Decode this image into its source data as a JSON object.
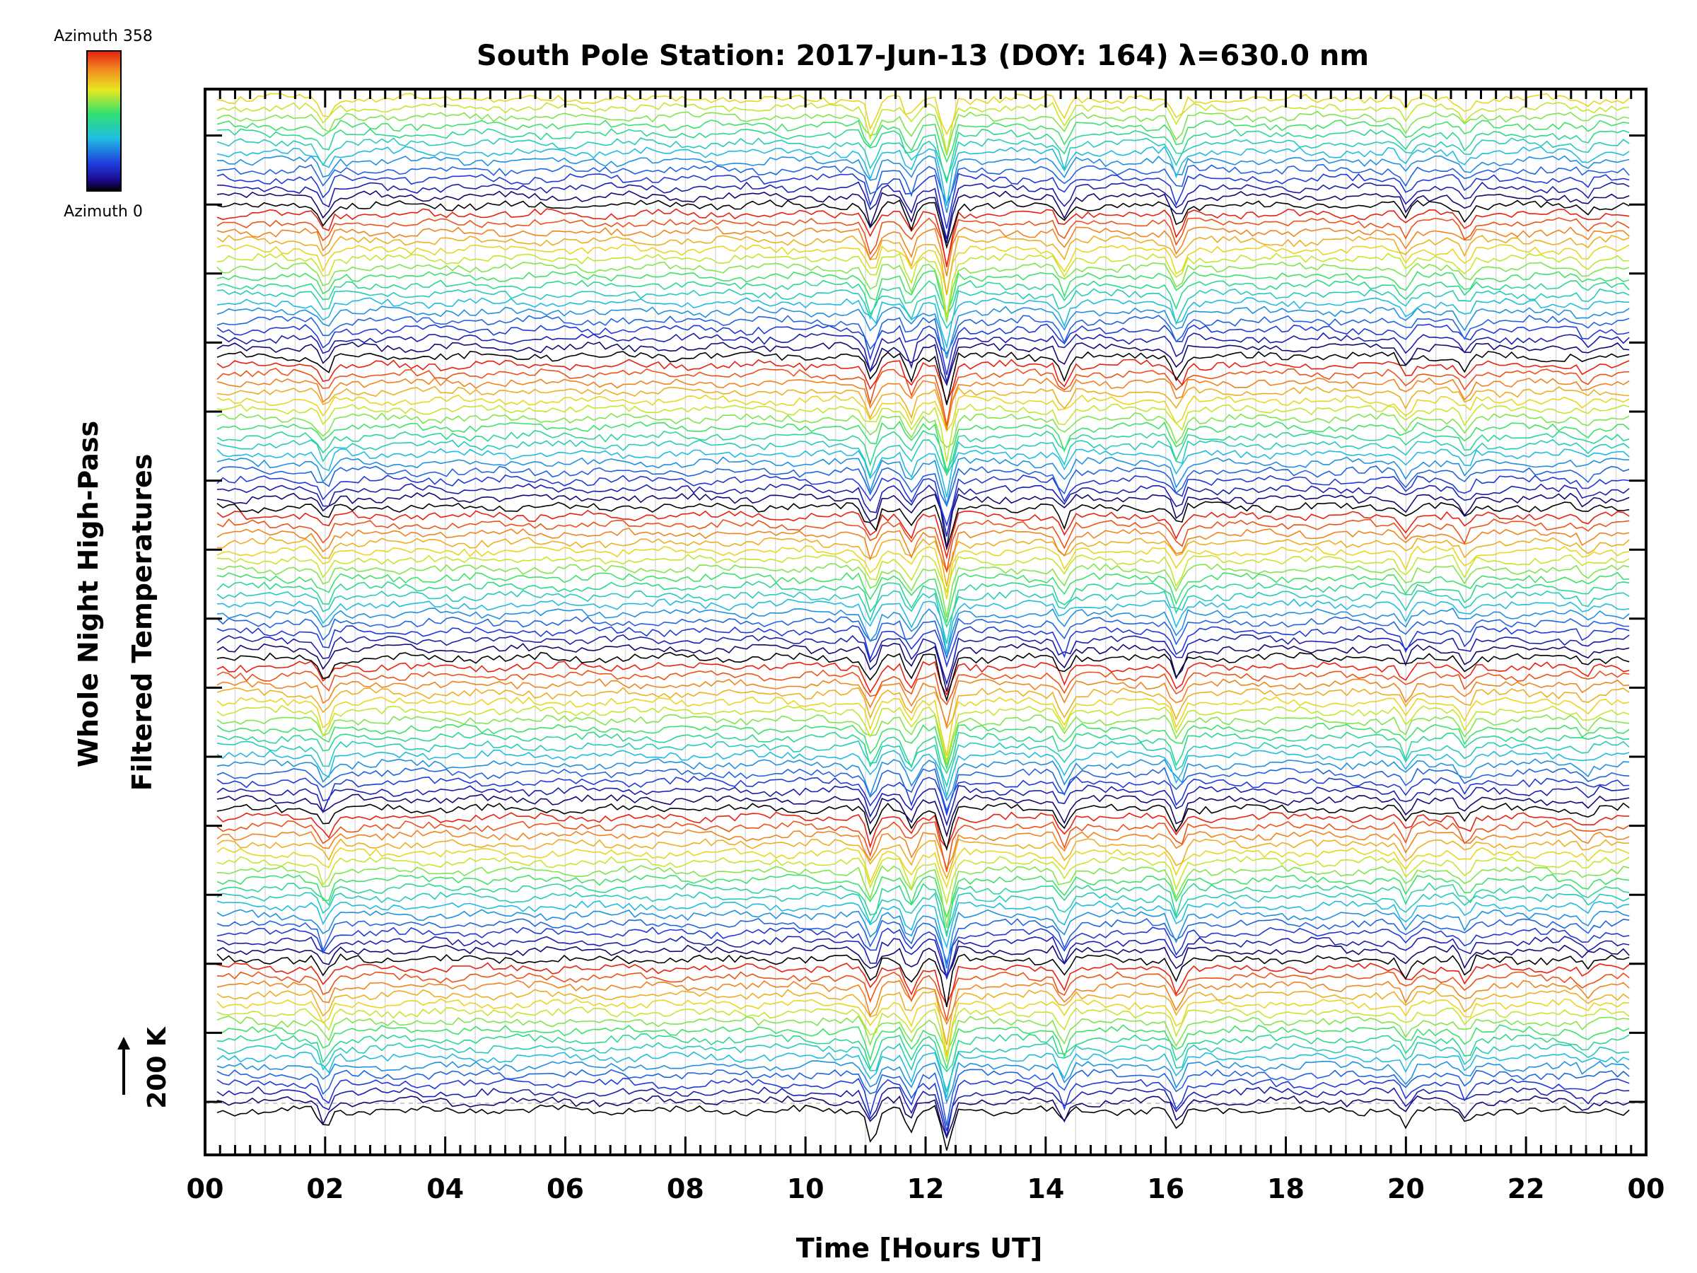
{
  "chart_data": {
    "type": "line",
    "title": "South Pole Station: 2017-Jun-13 (DOY: 164) λ=630.0 nm",
    "xlabel": "Time [Hours UT]",
    "ylabel_line1": "Whole Night High-Pass",
    "ylabel_line2": "Filtered Temperatures",
    "xlim": [
      0,
      24
    ],
    "x_tick_labels": [
      "00",
      "02",
      "04",
      "06",
      "08",
      "10",
      "12",
      "14",
      "16",
      "18",
      "20",
      "22",
      "00"
    ],
    "scale_bar_label": "200 K",
    "colorbar": {
      "top_label": "Azimuth 358",
      "bottom_label": "Azimuth 0",
      "azimuth_range": [
        0,
        358
      ],
      "colormap": "rainbow"
    },
    "grid": true,
    "n_traces": 115,
    "stack_offset_K": 20,
    "series_azimuth_cycle_deg": [
      0,
      358
    ],
    "event_times_hours_UT": [
      2.0,
      11.1,
      11.75,
      12.35,
      14.3,
      16.2,
      20.0,
      21.0,
      23.0
    ],
    "colors": {
      "azimuth_0": "#000000",
      "low_azimuth": "#2a2ad0",
      "mid_azimuth": "#20d0c0",
      "high_mid_azimuth": "#e0e020",
      "azimuth_358": "#e84010"
    }
  }
}
